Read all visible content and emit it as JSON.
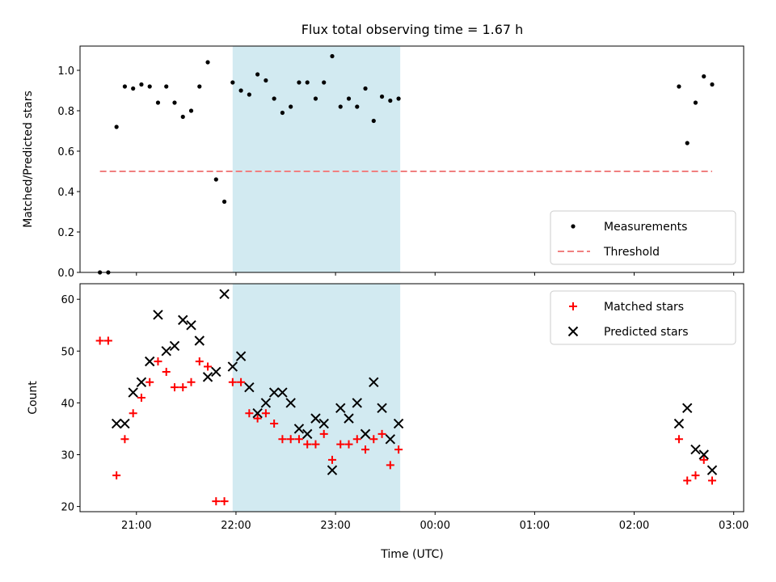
{
  "figure": {
    "title": "Flux total observing time = 1.67 h",
    "xlabel": "Time (UTC)"
  },
  "chart_data": [
    {
      "type": "scatter",
      "panel": "top",
      "ylabel": "Matched/Predicted stars",
      "x_hours_utc_ticks": [
        "21:00",
        "22:00",
        "23:00",
        "00:00",
        "01:00",
        "02:00",
        "03:00"
      ],
      "xlim": [
        "20:26",
        "03:06"
      ],
      "ylim": [
        0,
        1.12
      ],
      "yticks": [
        "0.0",
        "0.2",
        "0.4",
        "0.6",
        "0.8",
        "1.0"
      ],
      "shaded_interval": [
        "21:58",
        "23:39"
      ],
      "shade_color": "#add8e6",
      "legend_position": "lower-right",
      "series": [
        {
          "name": "Measurements",
          "color": "#000000",
          "marker": "dot",
          "points": [
            [
              "20:38",
              0.0
            ],
            [
              "20:43",
              0.0
            ],
            [
              "20:48",
              0.72
            ],
            [
              "20:53",
              0.92
            ],
            [
              "20:58",
              0.91
            ],
            [
              "21:03",
              0.93
            ],
            [
              "21:08",
              0.92
            ],
            [
              "21:13",
              0.84
            ],
            [
              "21:18",
              0.92
            ],
            [
              "21:23",
              0.84
            ],
            [
              "21:28",
              0.77
            ],
            [
              "21:33",
              0.8
            ],
            [
              "21:38",
              0.92
            ],
            [
              "21:43",
              1.04
            ],
            [
              "21:48",
              0.46
            ],
            [
              "21:53",
              0.35
            ],
            [
              "21:58",
              0.94
            ],
            [
              "22:03",
              0.9
            ],
            [
              "22:08",
              0.88
            ],
            [
              "22:13",
              0.98
            ],
            [
              "22:18",
              0.95
            ],
            [
              "22:23",
              0.86
            ],
            [
              "22:28",
              0.79
            ],
            [
              "22:33",
              0.82
            ],
            [
              "22:38",
              0.94
            ],
            [
              "22:43",
              0.94
            ],
            [
              "22:48",
              0.86
            ],
            [
              "22:53",
              0.94
            ],
            [
              "22:58",
              1.07
            ],
            [
              "23:03",
              0.82
            ],
            [
              "23:08",
              0.86
            ],
            [
              "23:13",
              0.82
            ],
            [
              "23:18",
              0.91
            ],
            [
              "23:23",
              0.75
            ],
            [
              "23:28",
              0.87
            ],
            [
              "23:33",
              0.85
            ],
            [
              "23:38",
              0.86
            ],
            [
              "02:27",
              0.92
            ],
            [
              "02:32",
              0.64
            ],
            [
              "02:37",
              0.84
            ],
            [
              "02:42",
              0.97
            ],
            [
              "02:47",
              0.93
            ]
          ]
        },
        {
          "name": "Threshold",
          "color": "#f08080",
          "style": "dashed",
          "points": [
            [
              "20:38",
              0.5
            ],
            [
              "02:47",
              0.5
            ]
          ]
        }
      ]
    },
    {
      "type": "scatter",
      "panel": "bottom",
      "ylabel": "Count",
      "xlim": [
        "20:26",
        "03:06"
      ],
      "ylim": [
        19,
        63
      ],
      "yticks": [
        "20",
        "30",
        "40",
        "50",
        "60"
      ],
      "shaded_interval": [
        "21:58",
        "23:39"
      ],
      "shade_color": "#add8e6",
      "legend_position": "upper-right",
      "series": [
        {
          "name": "Matched stars",
          "color": "#ff0000",
          "marker": "plus",
          "points": [
            [
              "20:38",
              52
            ],
            [
              "20:43",
              52
            ],
            [
              "20:48",
              26
            ],
            [
              "20:53",
              33
            ],
            [
              "20:58",
              38
            ],
            [
              "21:03",
              41
            ],
            [
              "21:08",
              44
            ],
            [
              "21:13",
              48
            ],
            [
              "21:18",
              46
            ],
            [
              "21:23",
              43
            ],
            [
              "21:28",
              43
            ],
            [
              "21:33",
              44
            ],
            [
              "21:38",
              48
            ],
            [
              "21:43",
              47
            ],
            [
              "21:48",
              21
            ],
            [
              "21:53",
              21
            ],
            [
              "21:58",
              44
            ],
            [
              "22:03",
              44
            ],
            [
              "22:08",
              38
            ],
            [
              "22:13",
              37
            ],
            [
              "22:18",
              38
            ],
            [
              "22:23",
              36
            ],
            [
              "22:28",
              33
            ],
            [
              "22:33",
              33
            ],
            [
              "22:38",
              33
            ],
            [
              "22:43",
              32
            ],
            [
              "22:48",
              32
            ],
            [
              "22:53",
              34
            ],
            [
              "22:58",
              29
            ],
            [
              "23:03",
              32
            ],
            [
              "23:08",
              32
            ],
            [
              "23:13",
              33
            ],
            [
              "23:18",
              31
            ],
            [
              "23:23",
              33
            ],
            [
              "23:28",
              34
            ],
            [
              "23:33",
              28
            ],
            [
              "23:38",
              31
            ],
            [
              "02:27",
              33
            ],
            [
              "02:32",
              25
            ],
            [
              "02:37",
              26
            ],
            [
              "02:42",
              29
            ],
            [
              "02:47",
              25
            ]
          ]
        },
        {
          "name": "Predicted stars",
          "color": "#000000",
          "marker": "x",
          "points": [
            [
              "20:48",
              36
            ],
            [
              "20:53",
              36
            ],
            [
              "20:58",
              42
            ],
            [
              "21:03",
              44
            ],
            [
              "21:08",
              48
            ],
            [
              "21:13",
              57
            ],
            [
              "21:18",
              50
            ],
            [
              "21:23",
              51
            ],
            [
              "21:28",
              56
            ],
            [
              "21:33",
              55
            ],
            [
              "21:38",
              52
            ],
            [
              "21:43",
              45
            ],
            [
              "21:48",
              46
            ],
            [
              "21:53",
              61
            ],
            [
              "21:58",
              47
            ],
            [
              "22:03",
              49
            ],
            [
              "22:08",
              43
            ],
            [
              "22:13",
              38
            ],
            [
              "22:18",
              40
            ],
            [
              "22:23",
              42
            ],
            [
              "22:28",
              42
            ],
            [
              "22:33",
              40
            ],
            [
              "22:38",
              35
            ],
            [
              "22:43",
              34
            ],
            [
              "22:48",
              37
            ],
            [
              "22:53",
              36
            ],
            [
              "22:58",
              27
            ],
            [
              "23:03",
              39
            ],
            [
              "23:08",
              37
            ],
            [
              "23:13",
              40
            ],
            [
              "23:18",
              34
            ],
            [
              "23:23",
              44
            ],
            [
              "23:28",
              39
            ],
            [
              "23:33",
              33
            ],
            [
              "23:38",
              36
            ],
            [
              "02:27",
              36
            ],
            [
              "02:32",
              39
            ],
            [
              "02:37",
              31
            ],
            [
              "02:42",
              30
            ],
            [
              "02:47",
              27
            ]
          ]
        }
      ]
    }
  ]
}
